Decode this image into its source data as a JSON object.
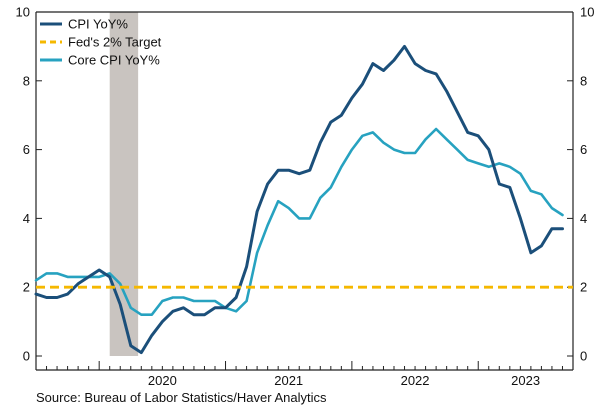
{
  "source_text": "Source:  Bureau of Labor Statistics/Haver Analytics",
  "colors": {
    "cpi": "#1b4f7a",
    "core": "#27a2c0",
    "target": "#f5b800",
    "recession": "#c9c4c0",
    "axis": "#222222",
    "background": "#ffffff"
  },
  "chart_data": {
    "type": "line",
    "title": "",
    "xlabel": "",
    "ylabel": "",
    "x_range": [
      "2019-07",
      "2023-10"
    ],
    "ylim": [
      0,
      10
    ],
    "grid": false,
    "legend_position": "top-left",
    "y_ticks": [
      "0",
      "2",
      "4",
      "6",
      "8",
      "10"
    ],
    "x_tick_labels": [
      "2020",
      "2021",
      "2022",
      "2023"
    ],
    "recession_shading": {
      "start": "2020-02",
      "end": "2020-04"
    },
    "x": [
      "2019-07",
      "2019-08",
      "2019-09",
      "2019-10",
      "2019-11",
      "2019-12",
      "2020-01",
      "2020-02",
      "2020-03",
      "2020-04",
      "2020-05",
      "2020-06",
      "2020-07",
      "2020-08",
      "2020-09",
      "2020-10",
      "2020-11",
      "2020-12",
      "2021-01",
      "2021-02",
      "2021-03",
      "2021-04",
      "2021-05",
      "2021-06",
      "2021-07",
      "2021-08",
      "2021-09",
      "2021-10",
      "2021-11",
      "2021-12",
      "2022-01",
      "2022-02",
      "2022-03",
      "2022-04",
      "2022-05",
      "2022-06",
      "2022-07",
      "2022-08",
      "2022-09",
      "2022-10",
      "2022-11",
      "2022-12",
      "2023-01",
      "2023-02",
      "2023-03",
      "2023-04",
      "2023-05",
      "2023-06",
      "2023-07",
      "2023-08",
      "2023-09"
    ],
    "series": [
      {
        "name": "CPI YoY%",
        "style": "solid",
        "values": [
          1.8,
          1.7,
          1.7,
          1.8,
          2.1,
          2.3,
          2.5,
          2.3,
          1.5,
          0.3,
          0.1,
          0.6,
          1.0,
          1.3,
          1.4,
          1.2,
          1.2,
          1.4,
          1.4,
          1.7,
          2.6,
          4.2,
          5.0,
          5.4,
          5.4,
          5.3,
          5.4,
          6.2,
          6.8,
          7.0,
          7.5,
          7.9,
          8.5,
          8.3,
          8.6,
          9.0,
          8.5,
          8.3,
          8.2,
          7.7,
          7.1,
          6.5,
          6.4,
          6.0,
          5.0,
          4.9,
          4.0,
          3.0,
          3.2,
          3.7,
          3.7
        ]
      },
      {
        "name": "Fed's 2% Target",
        "style": "dashed",
        "values": [
          2,
          2,
          2,
          2,
          2,
          2,
          2,
          2,
          2,
          2,
          2,
          2,
          2,
          2,
          2,
          2,
          2,
          2,
          2,
          2,
          2,
          2,
          2,
          2,
          2,
          2,
          2,
          2,
          2,
          2,
          2,
          2,
          2,
          2,
          2,
          2,
          2,
          2,
          2,
          2,
          2,
          2,
          2,
          2,
          2,
          2,
          2,
          2,
          2,
          2,
          2
        ]
      },
      {
        "name": "Core CPI YoY%",
        "style": "solid",
        "values": [
          2.2,
          2.4,
          2.4,
          2.3,
          2.3,
          2.3,
          2.3,
          2.4,
          2.1,
          1.4,
          1.2,
          1.2,
          1.6,
          1.7,
          1.7,
          1.6,
          1.6,
          1.6,
          1.4,
          1.3,
          1.6,
          3.0,
          3.8,
          4.5,
          4.3,
          4.0,
          4.0,
          4.6,
          4.9,
          5.5,
          6.0,
          6.4,
          6.5,
          6.2,
          6.0,
          5.9,
          5.9,
          6.3,
          6.6,
          6.3,
          6.0,
          5.7,
          5.6,
          5.5,
          5.6,
          5.5,
          5.3,
          4.8,
          4.7,
          4.3,
          4.1
        ]
      }
    ]
  }
}
